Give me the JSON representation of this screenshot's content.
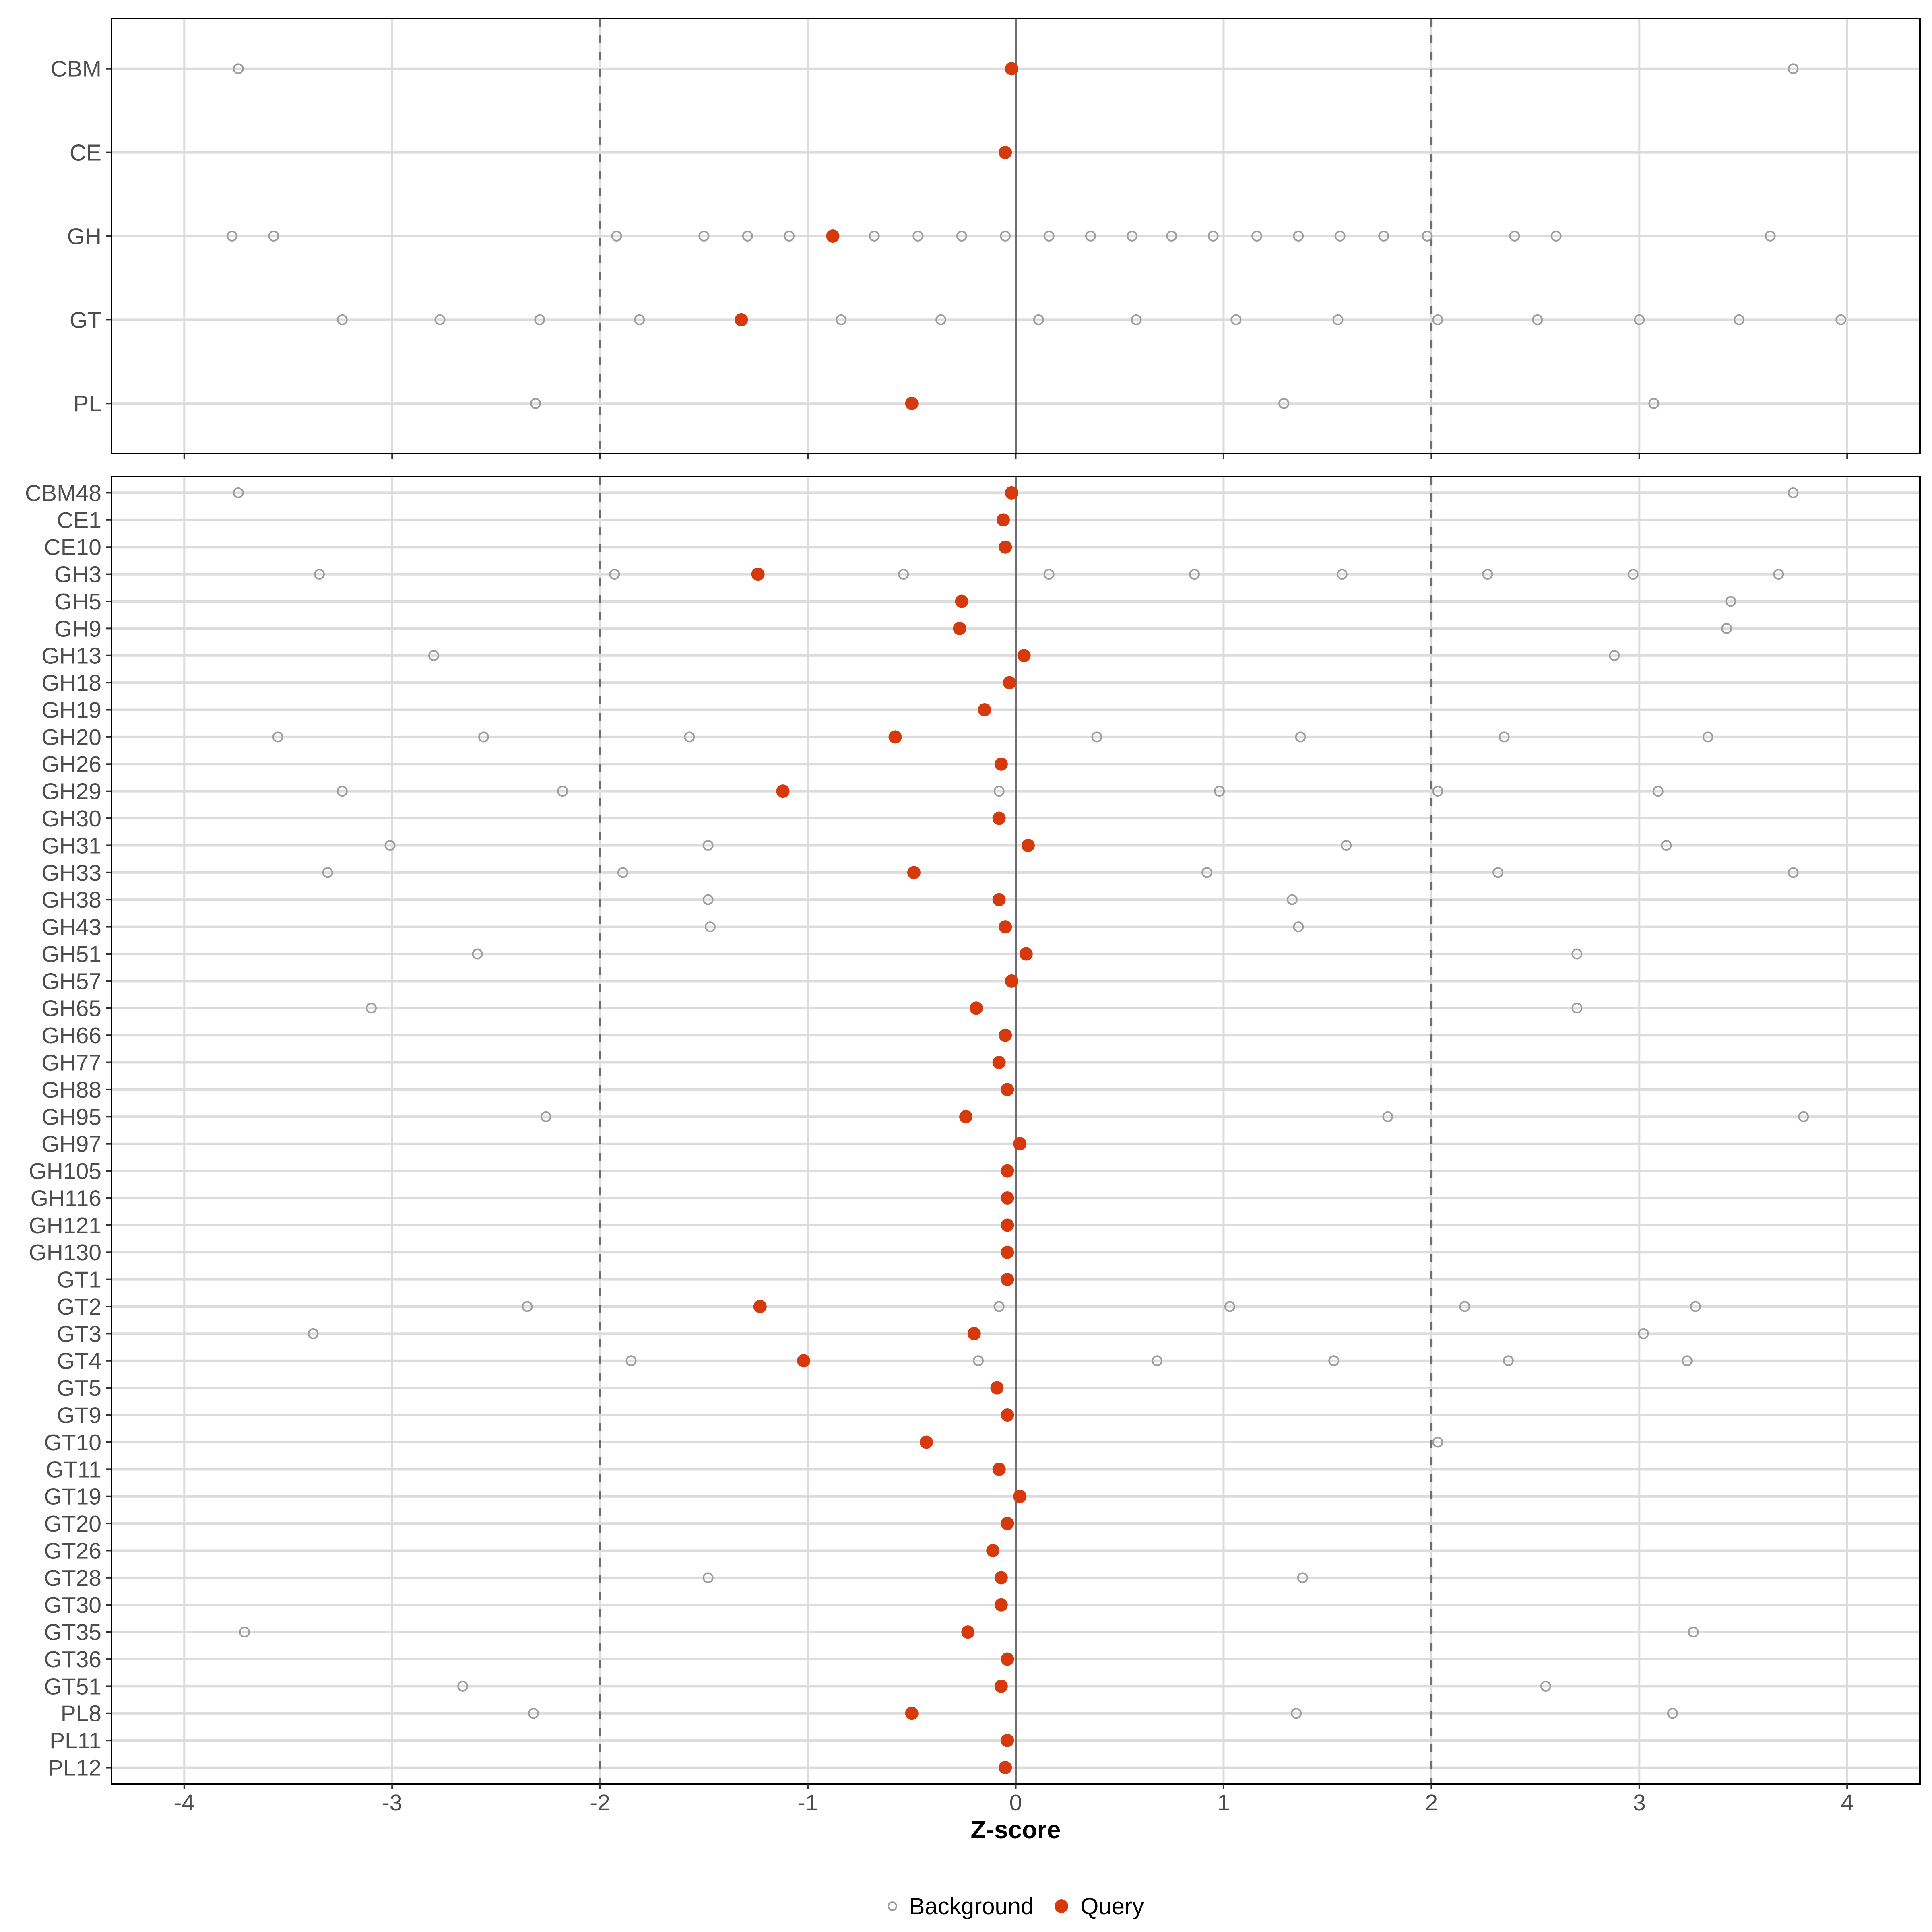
{
  "chart_data": {
    "type": "scatter",
    "title": "",
    "xlabel": "Z-score",
    "x_ticks": [
      -4,
      -3,
      -2,
      -1,
      0,
      1,
      2,
      3,
      4
    ],
    "xlim": [
      -4.35,
      4.35
    ],
    "grid": "on",
    "legend_position": "bottom",
    "reference_lines": {
      "solid": [
        0
      ],
      "dashed": [
        -2,
        2
      ]
    },
    "legend": [
      {
        "label": "Background",
        "marker": "open-circle"
      },
      {
        "label": "Query",
        "marker": "filled-dot"
      }
    ],
    "panels": [
      {
        "id": "cazyme-class-summary",
        "rows": [
          {
            "label": "CBM",
            "query": -0.02,
            "background": [
              -3.74,
              3.74
            ]
          },
          {
            "label": "CE",
            "query": -0.05,
            "background": []
          },
          {
            "label": "GH",
            "query": -0.88,
            "background": [
              -3.77,
              -3.57,
              -1.92,
              -1.5,
              -1.29,
              -1.09,
              -0.68,
              -0.47,
              -0.26,
              -0.05,
              0.16,
              0.36,
              0.56,
              0.75,
              0.95,
              1.16,
              1.36,
              1.56,
              1.77,
              1.98,
              2.4,
              2.6,
              3.63
            ]
          },
          {
            "label": "GT",
            "query": -1.32,
            "background": [
              -3.24,
              -2.77,
              -2.29,
              -1.81,
              -0.84,
              -0.36,
              0.11,
              0.58,
              1.06,
              1.55,
              2.03,
              2.51,
              3.0,
              3.48,
              3.97
            ]
          },
          {
            "label": "PL",
            "query": -0.5,
            "background": [
              -2.31,
              1.29,
              3.07
            ]
          }
        ]
      },
      {
        "id": "cazyme-family-detail",
        "rows": [
          {
            "label": "CBM48",
            "query": -0.02,
            "background": [
              -3.74,
              3.74
            ]
          },
          {
            "label": "CE1",
            "query": -0.06,
            "background": []
          },
          {
            "label": "CE10",
            "query": -0.05,
            "background": []
          },
          {
            "label": "GH3",
            "query": -1.24,
            "background": [
              -3.35,
              -1.93,
              -0.54,
              0.16,
              0.86,
              1.57,
              2.27,
              2.97,
              3.67
            ]
          },
          {
            "label": "GH5",
            "query": -0.26,
            "background": [
              3.44
            ]
          },
          {
            "label": "GH9",
            "query": -0.27,
            "background": [
              3.42
            ]
          },
          {
            "label": "GH13",
            "query": 0.04,
            "background": [
              -2.8,
              2.88
            ]
          },
          {
            "label": "GH18",
            "query": -0.03,
            "background": []
          },
          {
            "label": "GH19",
            "query": -0.15,
            "background": []
          },
          {
            "label": "GH20",
            "query": -0.58,
            "background": [
              -3.55,
              -2.56,
              -1.57,
              0.39,
              1.37,
              2.35,
              3.33
            ]
          },
          {
            "label": "GH26",
            "query": -0.07,
            "background": []
          },
          {
            "label": "GH29",
            "query": -1.12,
            "background": [
              -3.24,
              -2.18,
              -0.08,
              0.98,
              2.03,
              3.09
            ]
          },
          {
            "label": "GH30",
            "query": -0.08,
            "background": []
          },
          {
            "label": "GH31",
            "query": 0.06,
            "background": [
              -3.01,
              -1.48,
              1.59,
              3.13
            ]
          },
          {
            "label": "GH33",
            "query": -0.49,
            "background": [
              -3.31,
              -1.89,
              0.92,
              2.32,
              3.74
            ]
          },
          {
            "label": "GH38",
            "query": -0.08,
            "background": [
              -1.48,
              1.33
            ]
          },
          {
            "label": "GH43",
            "query": -0.05,
            "background": [
              -1.47,
              1.36
            ]
          },
          {
            "label": "GH51",
            "query": 0.05,
            "background": [
              -2.59,
              2.7
            ]
          },
          {
            "label": "GH57",
            "query": -0.02,
            "background": []
          },
          {
            "label": "GH65",
            "query": -0.19,
            "background": [
              -3.1,
              2.7
            ]
          },
          {
            "label": "GH66",
            "query": -0.05,
            "background": []
          },
          {
            "label": "GH77",
            "query": -0.08,
            "background": []
          },
          {
            "label": "GH88",
            "query": -0.04,
            "background": []
          },
          {
            "label": "GH95",
            "query": -0.24,
            "background": [
              -2.26,
              1.79,
              3.79
            ]
          },
          {
            "label": "GH97",
            "query": 0.02,
            "background": []
          },
          {
            "label": "GH105",
            "query": -0.04,
            "background": []
          },
          {
            "label": "GH116",
            "query": -0.04,
            "background": []
          },
          {
            "label": "GH121",
            "query": -0.04,
            "background": []
          },
          {
            "label": "GH130",
            "query": -0.04,
            "background": []
          },
          {
            "label": "GT1",
            "query": -0.04,
            "background": []
          },
          {
            "label": "GT2",
            "query": -1.23,
            "background": [
              -2.35,
              -0.08,
              1.03,
              2.16,
              3.27
            ]
          },
          {
            "label": "GT3",
            "query": -0.2,
            "background": [
              -3.38,
              3.02
            ]
          },
          {
            "label": "GT4",
            "query": -1.02,
            "background": [
              -1.85,
              -0.18,
              0.68,
              1.53,
              2.37,
              3.23
            ]
          },
          {
            "label": "GT5",
            "query": -0.09,
            "background": []
          },
          {
            "label": "GT9",
            "query": -0.04,
            "background": []
          },
          {
            "label": "GT10",
            "query": -0.43,
            "background": [
              2.03
            ]
          },
          {
            "label": "GT11",
            "query": -0.08,
            "background": []
          },
          {
            "label": "GT19",
            "query": 0.02,
            "background": []
          },
          {
            "label": "GT20",
            "query": -0.04,
            "background": []
          },
          {
            "label": "GT26",
            "query": -0.11,
            "background": []
          },
          {
            "label": "GT28",
            "query": -0.07,
            "background": [
              -1.48,
              1.38
            ]
          },
          {
            "label": "GT30",
            "query": -0.07,
            "background": []
          },
          {
            "label": "GT35",
            "query": -0.23,
            "background": [
              -3.71,
              3.26
            ]
          },
          {
            "label": "GT36",
            "query": -0.04,
            "background": []
          },
          {
            "label": "GT51",
            "query": -0.07,
            "background": [
              -2.66,
              2.55
            ]
          },
          {
            "label": "PL8",
            "query": -0.5,
            "background": [
              -2.32,
              1.35,
              3.16
            ]
          },
          {
            "label": "PL11",
            "query": -0.04,
            "background": []
          },
          {
            "label": "PL12",
            "query": -0.05,
            "background": []
          }
        ]
      }
    ]
  },
  "colors": {
    "query": "#D63A0C",
    "background_stroke": "#9D9D9D",
    "gridline": "#DCDCDC",
    "reference_line": "#6E6E6E",
    "axis_text": "#4D4D4D",
    "axis_tick": "#333333",
    "panel_border": "#000000"
  }
}
